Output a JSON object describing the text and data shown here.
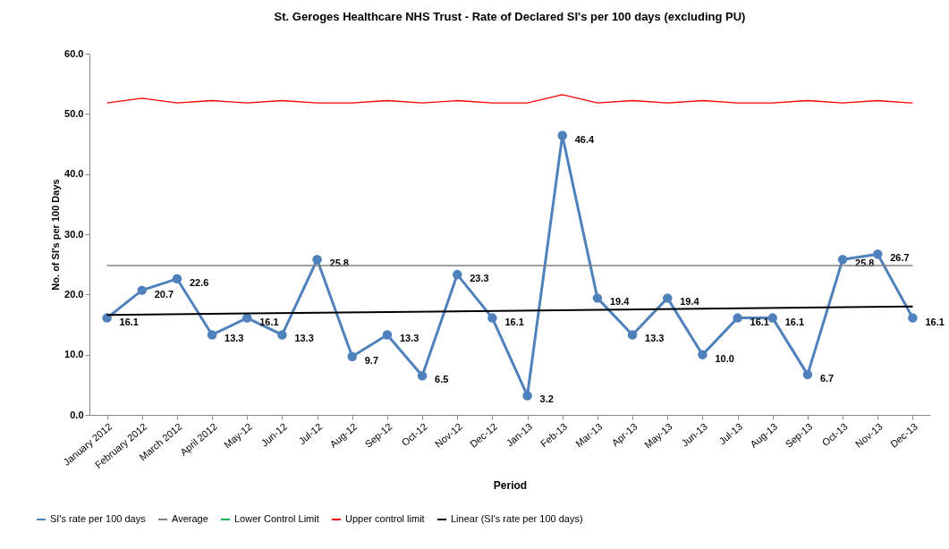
{
  "chart_data": {
    "type": "line",
    "title": "St. Geroges Healthcare NHS Trust - Rate of  Declared SI's per 100 days (excluding PU)",
    "xlabel": "Period",
    "ylabel": "No. of SI's per 100 Days",
    "categories": [
      "January 2012",
      "February 2012",
      "March 2012",
      "April 2012",
      "May-12",
      "Jun-12",
      "Jul-12",
      "Aug-12",
      "Sep-12",
      "Oct-12",
      "Nov-12",
      "Dec-12",
      "Jan-13",
      "Feb-13",
      "Mar-13",
      "Apr-13",
      "May-13",
      "Jun-13",
      "Jul-13",
      "Aug-13",
      "Sep-13",
      "Oct-13",
      "Nov-13",
      "Dec-13"
    ],
    "ylim": [
      0,
      60
    ],
    "yticks": [
      {
        "value": 0,
        "label": "0.0"
      },
      {
        "value": 10,
        "label": "10.0"
      },
      {
        "value": 20,
        "label": "20.0"
      },
      {
        "value": 30,
        "label": "30.0"
      },
      {
        "value": 40,
        "label": "40.0"
      },
      {
        "value": 50,
        "label": "50.0"
      },
      {
        "value": 60,
        "label": "60.0"
      }
    ],
    "grid": false,
    "legend": "bottom",
    "series": [
      {
        "name": "SI's rate per 100 days",
        "color": "#4f81bd",
        "marker": "circle",
        "values": [
          16.1,
          20.7,
          22.6,
          13.3,
          16.1,
          13.3,
          25.8,
          9.7,
          13.3,
          6.5,
          23.3,
          16.1,
          3.2,
          46.4,
          19.4,
          13.3,
          19.4,
          10.0,
          16.1,
          16.1,
          6.7,
          25.8,
          26.7,
          16.1
        ],
        "value_labels": [
          "16.1",
          "20.7",
          "22.6",
          "13.3",
          "16.1",
          "13.3",
          "25.8",
          "9.7",
          "13.3",
          "6.5",
          "23.3",
          "16.1",
          "3.2",
          "46.4",
          "19.4",
          "13.3",
          "19.4",
          "10.0",
          "16.1",
          "16.1",
          "6.7",
          "25.8",
          "26.7",
          "16.1"
        ]
      },
      {
        "name": "Average",
        "color": "#808080",
        "values": [
          24.8,
          24.8,
          24.8,
          24.8,
          24.8,
          24.8,
          24.8,
          24.8,
          24.8,
          24.8,
          24.8,
          24.8,
          24.8,
          24.8,
          24.8,
          24.8,
          24.8,
          24.8,
          24.8,
          24.8,
          24.8,
          24.8,
          24.8,
          24.8
        ]
      },
      {
        "name": "Lower Control Limit",
        "color": "#00b050",
        "values": [
          null,
          null,
          null,
          null,
          null,
          null,
          null,
          null,
          null,
          null,
          null,
          null,
          null,
          null,
          null,
          null,
          null,
          null,
          null,
          null,
          null,
          null,
          null,
          null
        ]
      },
      {
        "name": "Upper control limit",
        "color": "#ff0000",
        "values": [
          51.8,
          52.6,
          51.8,
          52.2,
          51.8,
          52.2,
          51.8,
          51.8,
          52.2,
          51.8,
          52.2,
          51.8,
          51.8,
          53.2,
          51.8,
          52.2,
          51.8,
          52.2,
          51.8,
          51.8,
          52.2,
          51.8,
          52.2,
          51.8
        ]
      },
      {
        "name": "Linear (SI's rate per 100 days)",
        "color": "#000000",
        "values": [
          16.6,
          null,
          null,
          null,
          null,
          null,
          null,
          null,
          null,
          null,
          null,
          null,
          null,
          null,
          null,
          null,
          null,
          null,
          null,
          null,
          null,
          null,
          null,
          18.0
        ]
      }
    ]
  }
}
